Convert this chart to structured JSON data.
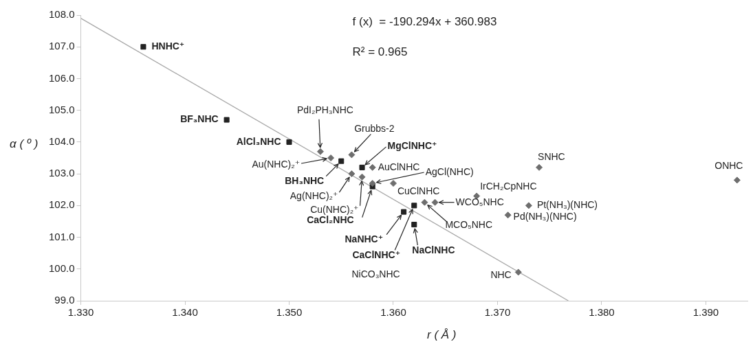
{
  "chart_data": {
    "type": "scatter",
    "xlabel": "r ( Å )",
    "ylabel": "α ( º )",
    "xlim": [
      1.33,
      1.394
    ],
    "ylim": [
      99,
      108
    ],
    "xticks": [
      {
        "value": 1.33,
        "label": "1.330"
      },
      {
        "value": 1.34,
        "label": "1.340"
      },
      {
        "value": 1.35,
        "label": "1.350"
      },
      {
        "value": 1.36,
        "label": "1.360"
      },
      {
        "value": 1.37,
        "label": "1.370"
      },
      {
        "value": 1.38,
        "label": "1.380"
      },
      {
        "value": 1.39,
        "label": "1.390"
      }
    ],
    "yticks": [
      {
        "value": 99,
        "label": "99.0"
      },
      {
        "value": 100,
        "label": "100.0"
      },
      {
        "value": 101,
        "label": "101.0"
      },
      {
        "value": 102,
        "label": "102.0"
      },
      {
        "value": 103,
        "label": "103.0"
      },
      {
        "value": 104,
        "label": "104.0"
      },
      {
        "value": 105,
        "label": "105.0"
      },
      {
        "value": 106,
        "label": "106.0"
      },
      {
        "value": 107,
        "label": "107.0"
      },
      {
        "value": 108,
        "label": "108.0"
      }
    ],
    "grid": false,
    "legend": false,
    "series": [
      {
        "type": "line",
        "marker": "none",
        "color": "#a8a8a8",
        "x": [
          1.33,
          1.3768
        ],
        "values": [
          107.9,
          99.0
        ]
      },
      {
        "marker": "square",
        "color": "#222222",
        "x": [
          1.336,
          1.344,
          1.35,
          1.355,
          1.357,
          1.358,
          1.361,
          1.362,
          1.362
        ],
        "values": [
          107.0,
          104.7,
          104.0,
          103.4,
          103.2,
          102.6,
          101.8,
          102.0,
          101.4
        ]
      },
      {
        "marker": "diamond",
        "color": "#6e6e6e",
        "x": [
          1.353,
          1.354,
          1.356,
          1.358,
          1.356,
          1.357,
          1.358,
          1.36,
          1.363,
          1.364,
          1.368,
          1.373,
          1.371,
          1.374,
          1.393,
          1.372
        ],
        "values": [
          103.7,
          103.5,
          103.6,
          103.2,
          103.0,
          102.9,
          102.7,
          102.7,
          102.1,
          102.1,
          102.3,
          102.0,
          101.7,
          103.2,
          102.8,
          99.9
        ]
      }
    ],
    "annotations": [
      "f (x)  = -190.294x + 360.983",
      "R² = 0.965",
      "NiCO₃NHC",
      {
        "text": "HNHC⁺",
        "x": 1.336,
        "y": 107.0
      },
      {
        "text": "BF₃NHC",
        "x": 1.344,
        "y": 104.7
      },
      {
        "text": "AlCl₃NHC",
        "x": 1.35,
        "y": 104.0
      },
      {
        "text": "BH₃NHC",
        "x": 1.355,
        "y": 103.4
      },
      {
        "text": "PdI₂PH₃NHC",
        "x": 1.353,
        "y": 103.7
      },
      {
        "text": "Au(NHC)₂⁺",
        "x": 1.354,
        "y": 103.5
      },
      {
        "text": "Grubbs-2",
        "x": 1.356,
        "y": 103.6
      },
      {
        "text": "MgClNHC⁺",
        "x": 1.357,
        "y": 103.2
      },
      {
        "text": "AuClNHC",
        "x": 1.358,
        "y": 103.2
      },
      {
        "text": "Ag(NHC)₂⁺",
        "x": 1.356,
        "y": 103.0
      },
      {
        "text": "Cu(NHC)₂⁺",
        "x": 1.357,
        "y": 102.9
      },
      {
        "text": "AgCl(NHC)",
        "x": 1.358,
        "y": 102.7
      },
      {
        "text": "CaCl₂NHC",
        "x": 1.358,
        "y": 102.6
      },
      {
        "text": "CuClNHC",
        "x": 1.36,
        "y": 102.7
      },
      {
        "text": "NaNHC⁺",
        "x": 1.361,
        "y": 101.8
      },
      {
        "text": "CaClNHC⁺",
        "x": 1.362,
        "y": 102.0
      },
      {
        "text": "NaClNHC",
        "x": 1.362,
        "y": 101.4
      },
      {
        "text": "MCO₅NHC",
        "x": 1.363,
        "y": 102.1
      },
      {
        "text": "WCO₅NHC",
        "x": 1.364,
        "y": 102.1
      },
      {
        "text": "IrCH₂CpNHC",
        "x": 1.368,
        "y": 102.3
      },
      {
        "text": "Pt(NH₃)(NHC)",
        "x": 1.373,
        "y": 102.0
      },
      {
        "text": "Pd(NH₃)(NHC)",
        "x": 1.371,
        "y": 101.7
      },
      {
        "text": "SNHC",
        "x": 1.374,
        "y": 103.2
      },
      {
        "text": "ONHC",
        "x": 1.393,
        "y": 102.8
      },
      {
        "text": "NHC",
        "x": 1.372,
        "y": 99.9
      }
    ]
  }
}
